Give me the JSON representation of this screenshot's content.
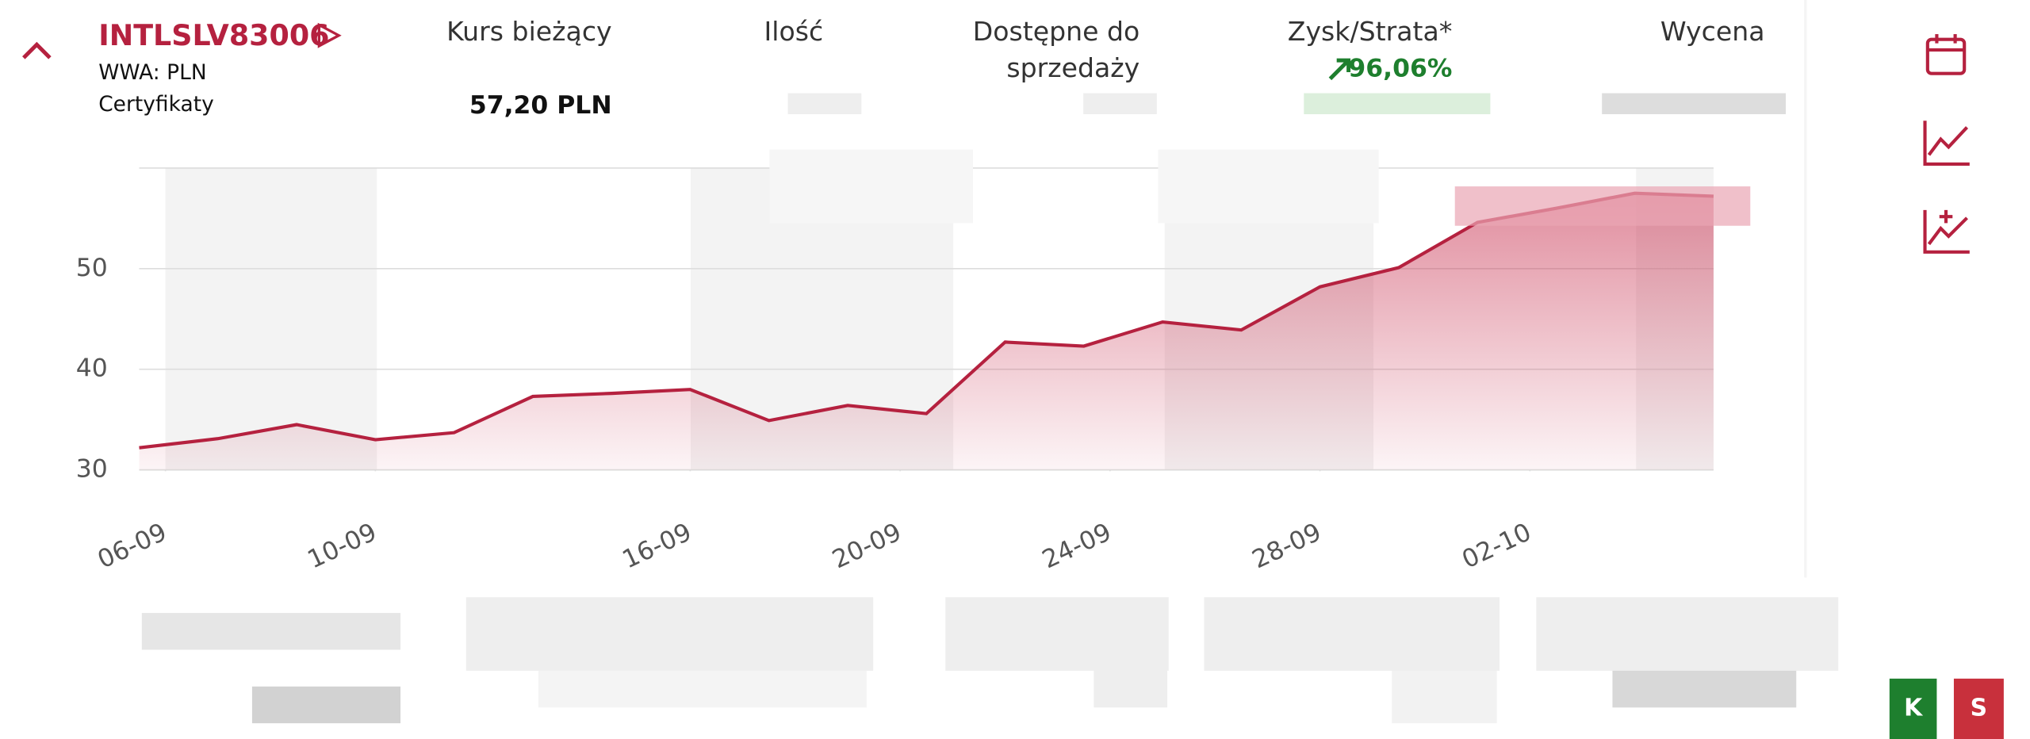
{
  "header": {
    "symbol": "INTLSLV83006",
    "market": "WWA: PLN",
    "category": "Certyfikaty",
    "price_label": "Kurs bieżący",
    "price": "57,20 PLN",
    "quantity_label": "Ilość",
    "available_label": [
      "Dostępne do",
      "sprzedaży"
    ],
    "pnl_label": "Zysk/Strata*",
    "pnl": "96,06%",
    "valuation_label": "Wycena"
  },
  "actions": {
    "buy": "K",
    "sell": "S"
  },
  "chart_data": {
    "type": "line",
    "x": [
      5.5,
      7,
      8.5,
      10,
      11.5,
      13,
      14.5,
      16,
      17.5,
      19,
      20.5,
      22,
      23.5,
      25,
      26.5,
      28,
      29.5,
      31,
      32.5,
      34,
      35.5
    ],
    "series": [
      {
        "color": "#b5213f",
        "values": [
          32.2,
          33.1,
          34.5,
          33.0,
          33.7,
          37.3,
          37.6,
          38.0,
          34.9,
          36.4,
          35.6,
          42.7,
          42.3,
          44.7,
          43.9,
          48.2,
          50.1,
          54.6,
          56.0,
          57.5,
          57.2
        ]
      }
    ],
    "xlim": [
      5.5,
      35.5
    ],
    "xticks": [
      {
        "value": 6,
        "label": "06-09"
      },
      {
        "value": 10,
        "label": "10-09"
      },
      {
        "value": 16,
        "label": "16-09"
      },
      {
        "value": 20,
        "label": "20-09"
      },
      {
        "value": 24,
        "label": "24-09"
      },
      {
        "value": 28,
        "label": "28-09"
      },
      {
        "value": 32,
        "label": "02-10"
      }
    ],
    "ylim": [
      30,
      60
    ],
    "yticks": [
      30,
      40,
      50
    ],
    "grid": true
  }
}
